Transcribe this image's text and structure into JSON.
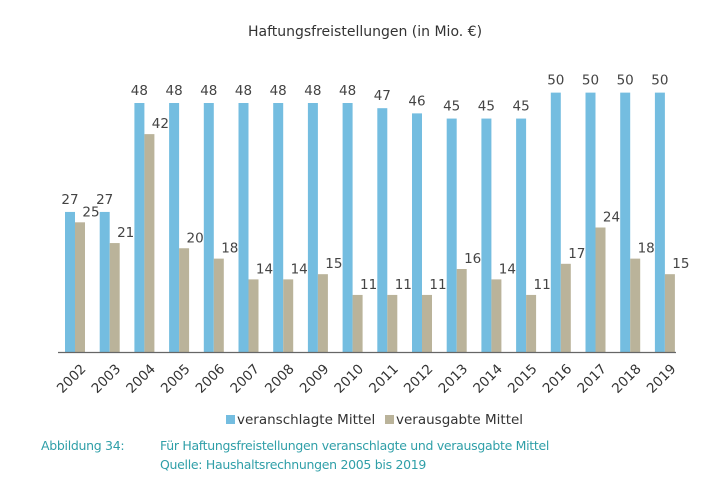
{
  "chart_data": {
    "type": "bar",
    "title": "Haftungsfreistellungen (in Mio. €)",
    "categories": [
      "2002",
      "2003",
      "2004",
      "2005",
      "2006",
      "2007",
      "2008",
      "2009",
      "2010",
      "2011",
      "2012",
      "2013",
      "2014",
      "2015",
      "2016",
      "2017",
      "2018",
      "2019"
    ],
    "series": [
      {
        "name": "veranschlagte Mittel",
        "color": "#74bde0",
        "values": [
          27,
          27,
          48,
          48,
          48,
          48,
          48,
          48,
          48,
          47,
          46,
          45,
          45,
          45,
          50,
          50,
          50,
          50
        ]
      },
      {
        "name": "verausgabte Mittel",
        "color": "#bab39a",
        "values": [
          25,
          21,
          42,
          20,
          18,
          14,
          14,
          15,
          11,
          11,
          11,
          16,
          14,
          11,
          17,
          24,
          18,
          15
        ]
      }
    ],
    "xlabel": "",
    "ylabel": "",
    "ylim": [
      0,
      50
    ],
    "grid": false,
    "legend": "bottom",
    "data_labels": true
  },
  "caption": {
    "label": "Abbildung  34:",
    "text": "Für Haftungsfreistellungen veranschlagte und verausgabte Mittel",
    "source": "Quelle: Haushaltsrechnungen 2005 bis 2019",
    "color": "#2f9fa8"
  }
}
